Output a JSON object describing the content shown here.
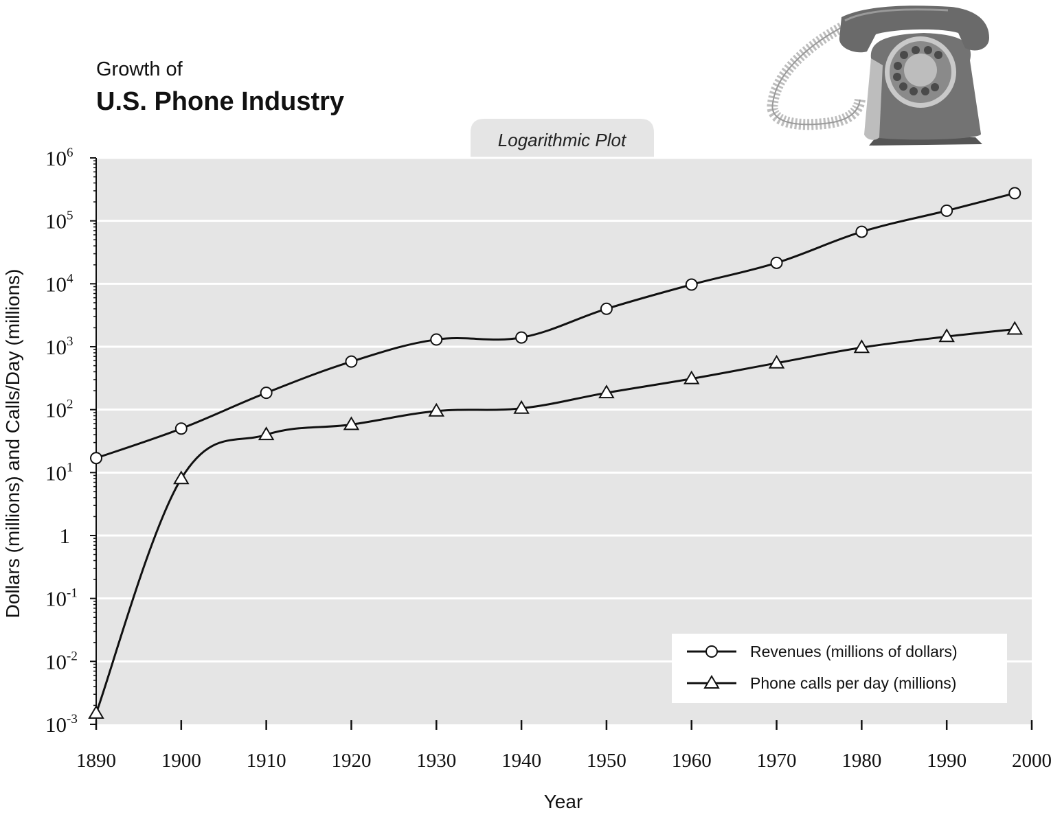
{
  "header": {
    "subtitle": "Growth of",
    "title": "U.S. Phone Industry",
    "tab_label": "Logarithmic Plot"
  },
  "chart_data": {
    "type": "line",
    "title": "U.S. Phone Industry",
    "subtitle": "Growth of",
    "annotation": "Logarithmic Plot",
    "xlabel": "Year",
    "ylabel": "Dollars (millions) and Calls/Day (millions)",
    "xlim": [
      1890,
      2000
    ],
    "ylim": [
      0.001,
      1000000
    ],
    "yscale": "log",
    "grid": "horizontal",
    "x_ticks": [
      "1890",
      "1900",
      "1910",
      "1920",
      "1930",
      "1940",
      "1950",
      "1960",
      "1970",
      "1980",
      "1990",
      "2000"
    ],
    "y_ticks": [
      {
        "value": 0.001,
        "base": "10",
        "exp": "-3"
      },
      {
        "value": 0.01,
        "base": "10",
        "exp": "-2"
      },
      {
        "value": 0.1,
        "base": "10",
        "exp": "-1"
      },
      {
        "value": 1,
        "base": "1",
        "exp": ""
      },
      {
        "value": 10,
        "base": "10",
        "exp": "1"
      },
      {
        "value": 100,
        "base": "10",
        "exp": "2"
      },
      {
        "value": 1000,
        "base": "10",
        "exp": "3"
      },
      {
        "value": 10000,
        "base": "10",
        "exp": "4"
      },
      {
        "value": 100000,
        "base": "10",
        "exp": "5"
      },
      {
        "value": 1000000,
        "base": "10",
        "exp": "6"
      }
    ],
    "legend_position": "bottom-right",
    "series": [
      {
        "name": "Revenues (millions of dollars)",
        "marker": "circle",
        "x": [
          1890,
          1900,
          1910,
          1920,
          1930,
          1940,
          1950,
          1960,
          1970,
          1980,
          1990,
          1998
        ],
        "values": [
          17,
          50,
          185,
          580,
          1300,
          1400,
          4000,
          9700,
          21500,
          67000,
          145000,
          275000
        ]
      },
      {
        "name": "Phone calls per day (millions)",
        "marker": "triangle",
        "x": [
          1890,
          1900,
          1910,
          1920,
          1930,
          1940,
          1950,
          1960,
          1970,
          1980,
          1990,
          1998
        ],
        "values": [
          0.0015,
          8,
          40,
          58,
          95,
          105,
          185,
          310,
          550,
          970,
          1450,
          1900
        ]
      }
    ]
  },
  "colors": {
    "plot_background": "#e5e5e5",
    "grid": "#ffffff",
    "line": "#111111",
    "phone_body": "#6e6e6e",
    "phone_light": "#bdbdbd"
  },
  "illustration": {
    "icon": "rotary-phone-icon"
  }
}
